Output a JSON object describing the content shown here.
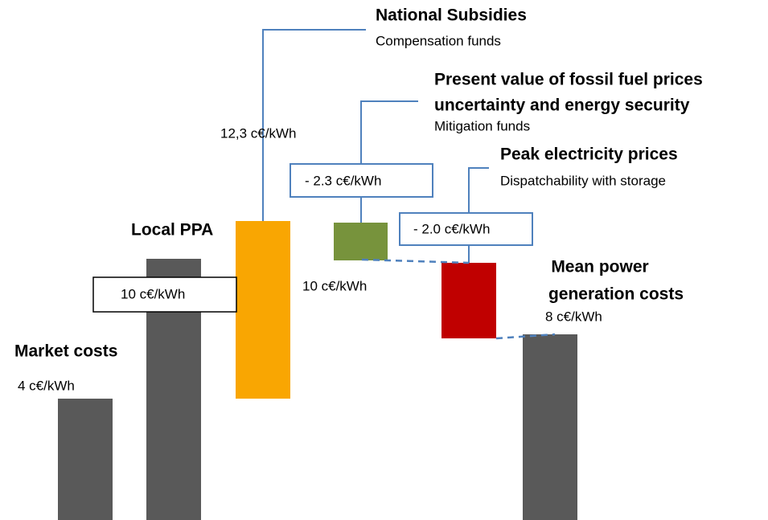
{
  "market": {
    "title": "Market  costs",
    "value": "4 c€/kWh"
  },
  "local_ppa": {
    "title": "Local PPA",
    "value": "10  c€/kWh"
  },
  "subsidies": {
    "title": "National Subsidies",
    "subtitle": "Compensation  funds",
    "value": "12,3  c€/kWh"
  },
  "fossil": {
    "title": [
      "Present value of fossil fuel prices",
      "uncertainty and energy security"
    ],
    "subtitle": "Mitigation funds",
    "value": "- 2.3 c€/kWh",
    "level": "10 c€/kWh"
  },
  "peak": {
    "title": "Peak electricity prices",
    "subtitle": "Dispatchability with storage",
    "value": "- 2.0 c€/kWh"
  },
  "mean": {
    "title": [
      "Mean power",
      "generation costs"
    ],
    "value": "8 c€/kWh"
  }
}
